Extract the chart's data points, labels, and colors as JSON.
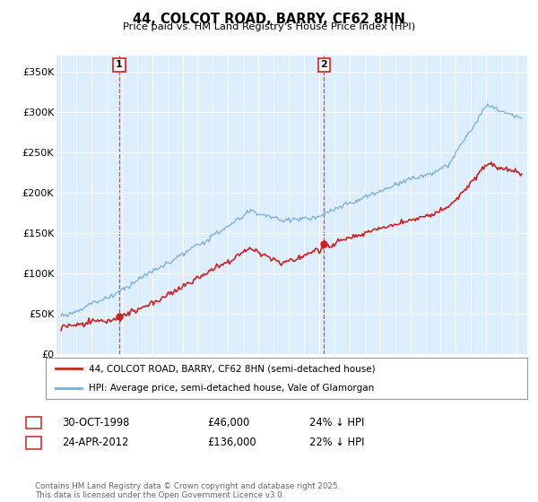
{
  "title": "44, COLCOT ROAD, BARRY, CF62 8HN",
  "subtitle": "Price paid vs. HM Land Registry's House Price Index (HPI)",
  "ylabel_ticks": [
    "£0",
    "£50K",
    "£100K",
    "£150K",
    "£200K",
    "£250K",
    "£300K",
    "£350K"
  ],
  "ytick_vals": [
    0,
    50000,
    100000,
    150000,
    200000,
    250000,
    300000,
    350000
  ],
  "ylim": [
    0,
    370000
  ],
  "xlim_start": 1994.7,
  "xlim_end": 2025.7,
  "legend_line1": "44, COLCOT ROAD, BARRY, CF62 8HN (semi-detached house)",
  "legend_line2": "HPI: Average price, semi-detached house, Vale of Glamorgan",
  "sale1_date": "30-OCT-1998",
  "sale1_price": "£46,000",
  "sale1_pct": "24% ↓ HPI",
  "sale1_x": 1998.83,
  "sale1_y": 46000,
  "sale2_date": "24-APR-2012",
  "sale2_price": "£136,000",
  "sale2_pct": "22% ↓ HPI",
  "sale2_x": 2012.31,
  "sale2_y": 136000,
  "hpi_color": "#7bafd4",
  "price_color": "#cc2222",
  "vline_color": "#cc3333",
  "plot_bg_color": "#ddeeff",
  "footer": "Contains HM Land Registry data © Crown copyright and database right 2025.\nThis data is licensed under the Open Government Licence v3.0.",
  "background_color": "#ffffff",
  "grid_color": "#ffffff"
}
